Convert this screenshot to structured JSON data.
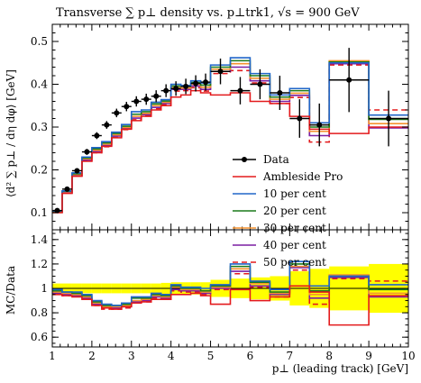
{
  "figure": {
    "title": "Transverse ∑ p⊥ density vs. p⊥trk1, √s = 900 GeV"
  },
  "chart_data": [
    {
      "type": "line",
      "panel": "main",
      "title": "Transverse ∑ p⊥ density vs. p⊥trk1, √s = 900 GeV",
      "xlabel": "",
      "ylabel": "⟨d² ∑ p⊥ / dη dφ⟩ [GeV]",
      "xlim": [
        1,
        10
      ],
      "ylim": [
        0.06,
        0.54
      ],
      "x_ticks": [
        1,
        2,
        3,
        4,
        5,
        6,
        7,
        8,
        9,
        10
      ],
      "y_ticks": [
        0.1,
        0.2,
        0.3,
        0.4,
        0.5
      ],
      "y_tick_labels": [
        "0.1",
        "0.2",
        "0.3",
        "0.4",
        "0.5"
      ],
      "bin_edges": [
        1.0,
        1.25,
        1.5,
        1.75,
        2.0,
        2.25,
        2.5,
        2.75,
        3.0,
        3.25,
        3.5,
        3.75,
        4.0,
        4.25,
        4.5,
        4.75,
        5.0,
        5.5,
        6.0,
        6.5,
        7.0,
        7.5,
        8.0,
        9.0,
        10.0
      ],
      "legend_position": "right-middle",
      "series": [
        {
          "name": "Data",
          "kind": "points",
          "color": "#000000",
          "x": [
            1.125,
            1.375,
            1.625,
            1.875,
            2.125,
            2.375,
            2.625,
            2.875,
            3.125,
            3.375,
            3.625,
            3.875,
            4.125,
            4.375,
            4.625,
            4.875,
            5.25,
            5.75,
            6.25,
            6.75,
            7.25,
            7.75,
            8.5,
            9.5
          ],
          "values": [
            0.105,
            0.155,
            0.198,
            0.242,
            0.28,
            0.305,
            0.333,
            0.348,
            0.36,
            0.365,
            0.372,
            0.385,
            0.39,
            0.395,
            0.402,
            0.405,
            0.43,
            0.385,
            0.4,
            0.38,
            0.32,
            0.305,
            0.41,
            0.32
          ],
          "y_errors": [
            0.004,
            0.005,
            0.006,
            0.007,
            0.008,
            0.009,
            0.01,
            0.011,
            0.012,
            0.013,
            0.014,
            0.015,
            0.017,
            0.018,
            0.019,
            0.02,
            0.03,
            0.032,
            0.035,
            0.04,
            0.045,
            0.05,
            0.075,
            0.065
          ]
        },
        {
          "name": "Ambleside Pro",
          "kind": "histogram",
          "color": "#e31a1c",
          "dash": "",
          "values": [
            0.1,
            0.145,
            0.185,
            0.22,
            0.24,
            0.255,
            0.275,
            0.295,
            0.315,
            0.325,
            0.34,
            0.35,
            0.37,
            0.375,
            0.385,
            0.38,
            0.375,
            0.38,
            0.36,
            0.355,
            0.325,
            0.295,
            0.285,
            0.3
          ]
        },
        {
          "name": "10 per cent",
          "kind": "histogram",
          "color": "#2166c9",
          "dash": "",
          "values": [
            0.104,
            0.151,
            0.193,
            0.23,
            0.252,
            0.266,
            0.288,
            0.306,
            0.336,
            0.34,
            0.358,
            0.364,
            0.4,
            0.397,
            0.408,
            0.403,
            0.445,
            0.462,
            0.425,
            0.375,
            0.39,
            0.31,
            0.45,
            0.328
          ]
        },
        {
          "name": "20 per cent",
          "kind": "histogram",
          "color": "#1a7a1a",
          "dash": "",
          "values": [
            0.103,
            0.15,
            0.191,
            0.228,
            0.249,
            0.263,
            0.285,
            0.302,
            0.33,
            0.336,
            0.354,
            0.361,
            0.396,
            0.395,
            0.404,
            0.398,
            0.44,
            0.455,
            0.42,
            0.37,
            0.385,
            0.3,
            0.452,
            0.318
          ]
        },
        {
          "name": "30 per cent",
          "kind": "histogram",
          "color": "#f5922f",
          "dash": "",
          "values": [
            0.102,
            0.149,
            0.189,
            0.226,
            0.246,
            0.26,
            0.282,
            0.299,
            0.325,
            0.332,
            0.35,
            0.358,
            0.392,
            0.391,
            0.4,
            0.393,
            0.435,
            0.448,
            0.414,
            0.365,
            0.379,
            0.29,
            0.455,
            0.308
          ]
        },
        {
          "name": "40 per cent",
          "kind": "histogram",
          "color": "#7b1fa2",
          "dash": "",
          "values": [
            0.101,
            0.147,
            0.187,
            0.223,
            0.243,
            0.257,
            0.279,
            0.297,
            0.321,
            0.329,
            0.346,
            0.355,
            0.388,
            0.388,
            0.396,
            0.388,
            0.43,
            0.44,
            0.408,
            0.36,
            0.374,
            0.28,
            0.448,
            0.298
          ]
        },
        {
          "name": "50 per cent",
          "kind": "histogram",
          "color": "#e31a1c",
          "dash": "6,4",
          "values": [
            0.101,
            0.146,
            0.186,
            0.221,
            0.24,
            0.254,
            0.276,
            0.294,
            0.317,
            0.326,
            0.343,
            0.352,
            0.384,
            0.385,
            0.392,
            0.384,
            0.425,
            0.432,
            0.403,
            0.355,
            0.369,
            0.265,
            0.445,
            0.34
          ]
        }
      ]
    },
    {
      "type": "line",
      "panel": "ratio",
      "xlabel": "p⊥ (leading track) [GeV]",
      "ylabel": "MC/Data",
      "xlim": [
        1,
        10
      ],
      "ylim": [
        0.52,
        1.48
      ],
      "x_ticks": [
        1,
        2,
        3,
        4,
        5,
        6,
        7,
        8,
        9,
        10
      ],
      "x_tick_labels": [
        "1",
        "2",
        "3",
        "4",
        "5",
        "6",
        "7",
        "8",
        "9",
        "10"
      ],
      "y_ticks": [
        0.6,
        0.8,
        1.0,
        1.2,
        1.4
      ],
      "y_tick_labels": [
        "0.6",
        "0.8",
        "1",
        "1.2",
        "1.4"
      ],
      "uncertainty_band_color": "#ffff00",
      "uncertainty_band": [
        0.04,
        0.04,
        0.04,
        0.04,
        0.04,
        0.04,
        0.04,
        0.04,
        0.04,
        0.04,
        0.04,
        0.045,
        0.05,
        0.05,
        0.05,
        0.05,
        0.07,
        0.08,
        0.09,
        0.1,
        0.14,
        0.16,
        0.18,
        0.2
      ],
      "series": [
        {
          "name": "Ambleside Pro",
          "color": "#e31a1c",
          "dash": "",
          "values": [
            0.95,
            0.94,
            0.93,
            0.91,
            0.86,
            0.84,
            0.83,
            0.85,
            0.88,
            0.89,
            0.91,
            0.91,
            0.95,
            0.95,
            0.96,
            0.94,
            0.87,
            0.99,
            0.9,
            0.93,
            1.02,
            0.97,
            0.7,
            0.94
          ]
        },
        {
          "name": "10 per cent",
          "color": "#2166c9",
          "dash": "",
          "values": [
            0.99,
            0.97,
            0.97,
            0.95,
            0.9,
            0.87,
            0.86,
            0.88,
            0.93,
            0.93,
            0.96,
            0.95,
            1.03,
            1.01,
            1.01,
            1.0,
            1.03,
            1.2,
            1.06,
            0.99,
            1.22,
            1.02,
            1.1,
            1.03
          ]
        },
        {
          "name": "20 per cent",
          "color": "#1a7a1a",
          "dash": "",
          "values": [
            0.98,
            0.97,
            0.96,
            0.94,
            0.89,
            0.86,
            0.86,
            0.87,
            0.92,
            0.92,
            0.95,
            0.94,
            1.02,
            1.0,
            1.0,
            0.98,
            1.02,
            1.18,
            1.05,
            0.97,
            1.2,
            0.98,
            1.1,
            0.99
          ]
        },
        {
          "name": "30 per cent",
          "color": "#f5922f",
          "dash": "",
          "values": [
            0.97,
            0.96,
            0.95,
            0.93,
            0.88,
            0.85,
            0.85,
            0.86,
            0.9,
            0.91,
            0.94,
            0.93,
            1.01,
            0.99,
            0.99,
            0.97,
            1.01,
            1.16,
            1.04,
            0.96,
            1.18,
            0.95,
            1.11,
            0.96
          ]
        },
        {
          "name": "40 per cent",
          "color": "#7b1fa2",
          "dash": "",
          "values": [
            0.96,
            0.95,
            0.94,
            0.92,
            0.87,
            0.84,
            0.84,
            0.85,
            0.89,
            0.9,
            0.93,
            0.92,
            0.99,
            0.98,
            0.98,
            0.96,
            1.0,
            1.14,
            1.02,
            0.95,
            1.17,
            0.92,
            1.09,
            0.93
          ]
        },
        {
          "name": "50 per cent",
          "color": "#e31a1c",
          "dash": "6,4",
          "values": [
            0.96,
            0.94,
            0.94,
            0.91,
            0.86,
            0.83,
            0.83,
            0.84,
            0.88,
            0.89,
            0.92,
            0.91,
            0.98,
            0.97,
            0.97,
            0.95,
            0.99,
            1.12,
            1.01,
            0.93,
            1.15,
            0.87,
            1.08,
            1.06
          ]
        }
      ]
    }
  ]
}
